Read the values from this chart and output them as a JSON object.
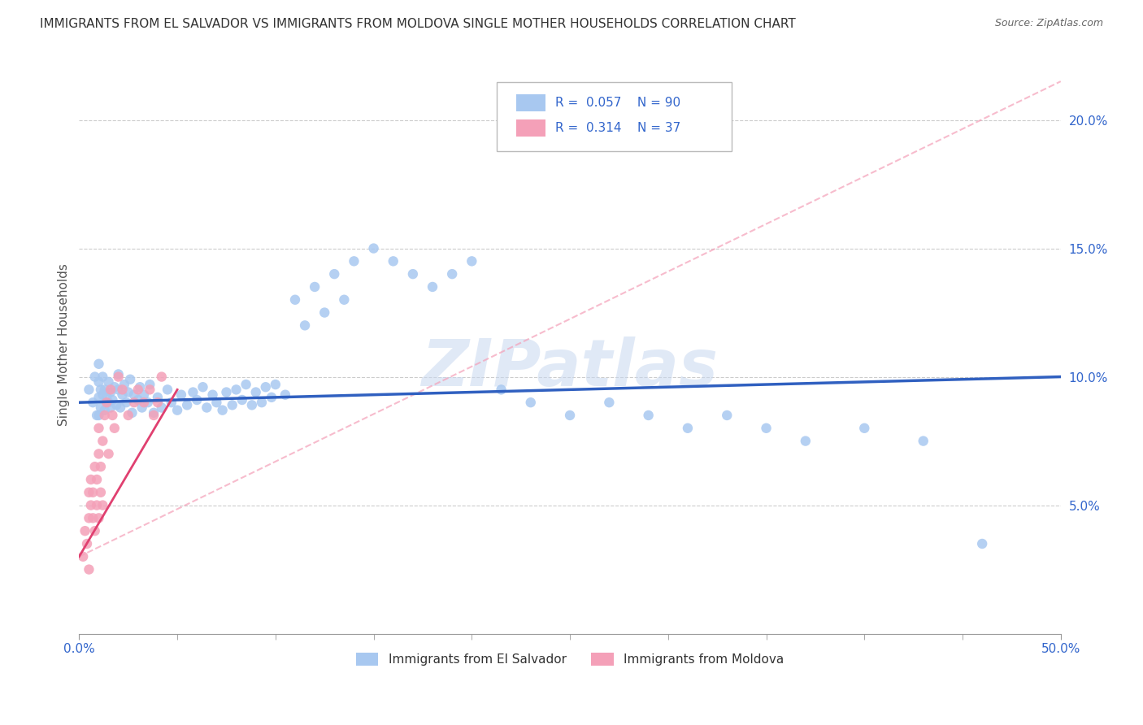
{
  "title": "IMMIGRANTS FROM EL SALVADOR VS IMMIGRANTS FROM MOLDOVA SINGLE MOTHER HOUSEHOLDS CORRELATION CHART",
  "source": "Source: ZipAtlas.com",
  "ylabel": "Single Mother Households",
  "watermark": "ZIPatlas",
  "legend_el_salvador": "Immigrants from El Salvador",
  "legend_moldova": "Immigrants from Moldova",
  "R_el_salvador": 0.057,
  "N_el_salvador": 90,
  "R_moldova": 0.314,
  "N_moldova": 37,
  "color_el_salvador": "#a8c8f0",
  "color_moldova": "#f4a0b8",
  "trendline_el_salvador": "#3060c0",
  "trendline_moldova": "#e04070",
  "trendline_extended": "#f4a0b8",
  "xlim": [
    0.0,
    0.5
  ],
  "ylim": [
    0.0,
    0.225
  ],
  "ytick_values": [
    0.05,
    0.1,
    0.15,
    0.2
  ],
  "ytick_labels": [
    "5.0%",
    "10.0%",
    "15.0%",
    "20.0%"
  ],
  "xtick_values": [
    0.0,
    0.5
  ],
  "xtick_labels": [
    "0.0%",
    "50.0%"
  ],
  "es_x": [
    0.005,
    0.007,
    0.008,
    0.009,
    0.01,
    0.01,
    0.01,
    0.01,
    0.011,
    0.011,
    0.012,
    0.012,
    0.013,
    0.013,
    0.014,
    0.015,
    0.015,
    0.016,
    0.016,
    0.017,
    0.018,
    0.019,
    0.02,
    0.02,
    0.021,
    0.022,
    0.023,
    0.024,
    0.025,
    0.026,
    0.027,
    0.028,
    0.03,
    0.031,
    0.032,
    0.033,
    0.035,
    0.036,
    0.038,
    0.04,
    0.042,
    0.045,
    0.047,
    0.05,
    0.052,
    0.055,
    0.058,
    0.06,
    0.063,
    0.065,
    0.068,
    0.07,
    0.073,
    0.075,
    0.078,
    0.08,
    0.083,
    0.085,
    0.088,
    0.09,
    0.093,
    0.095,
    0.098,
    0.1,
    0.105,
    0.11,
    0.115,
    0.12,
    0.125,
    0.13,
    0.135,
    0.14,
    0.15,
    0.16,
    0.17,
    0.18,
    0.19,
    0.2,
    0.215,
    0.23,
    0.25,
    0.27,
    0.29,
    0.31,
    0.33,
    0.35,
    0.37,
    0.4,
    0.43,
    0.46
  ],
  "es_y": [
    0.095,
    0.09,
    0.1,
    0.085,
    0.085,
    0.092,
    0.098,
    0.105,
    0.088,
    0.095,
    0.093,
    0.1,
    0.087,
    0.095,
    0.092,
    0.09,
    0.098,
    0.088,
    0.094,
    0.091,
    0.096,
    0.089,
    0.095,
    0.101,
    0.088,
    0.093,
    0.097,
    0.09,
    0.094,
    0.099,
    0.086,
    0.093,
    0.091,
    0.096,
    0.088,
    0.093,
    0.09,
    0.097,
    0.086,
    0.092,
    0.088,
    0.095,
    0.09,
    0.087,
    0.093,
    0.089,
    0.094,
    0.091,
    0.096,
    0.088,
    0.093,
    0.09,
    0.087,
    0.094,
    0.089,
    0.095,
    0.091,
    0.097,
    0.089,
    0.094,
    0.09,
    0.096,
    0.092,
    0.097,
    0.093,
    0.13,
    0.12,
    0.135,
    0.125,
    0.14,
    0.13,
    0.145,
    0.15,
    0.145,
    0.14,
    0.135,
    0.14,
    0.145,
    0.095,
    0.09,
    0.085,
    0.09,
    0.085,
    0.08,
    0.085,
    0.08,
    0.075,
    0.08,
    0.075,
    0.035
  ],
  "md_x": [
    0.002,
    0.003,
    0.004,
    0.005,
    0.005,
    0.005,
    0.006,
    0.006,
    0.007,
    0.007,
    0.008,
    0.008,
    0.009,
    0.009,
    0.01,
    0.01,
    0.01,
    0.011,
    0.011,
    0.012,
    0.012,
    0.013,
    0.014,
    0.015,
    0.016,
    0.017,
    0.018,
    0.02,
    0.022,
    0.025,
    0.028,
    0.03,
    0.033,
    0.036,
    0.038,
    0.04,
    0.042
  ],
  "md_y": [
    0.03,
    0.04,
    0.035,
    0.045,
    0.055,
    0.025,
    0.05,
    0.06,
    0.045,
    0.055,
    0.065,
    0.04,
    0.05,
    0.06,
    0.07,
    0.045,
    0.08,
    0.055,
    0.065,
    0.075,
    0.05,
    0.085,
    0.09,
    0.07,
    0.095,
    0.085,
    0.08,
    0.1,
    0.095,
    0.085,
    0.09,
    0.095,
    0.09,
    0.095,
    0.085,
    0.09,
    0.1
  ],
  "es_trend_x": [
    0.0,
    0.5
  ],
  "es_trend_y": [
    0.09,
    0.1
  ],
  "md_trend_x": [
    0.0,
    0.05
  ],
  "md_trend_y": [
    0.03,
    0.095
  ],
  "ext_trend_x": [
    0.0,
    0.5
  ],
  "ext_trend_y": [
    0.03,
    0.215
  ]
}
